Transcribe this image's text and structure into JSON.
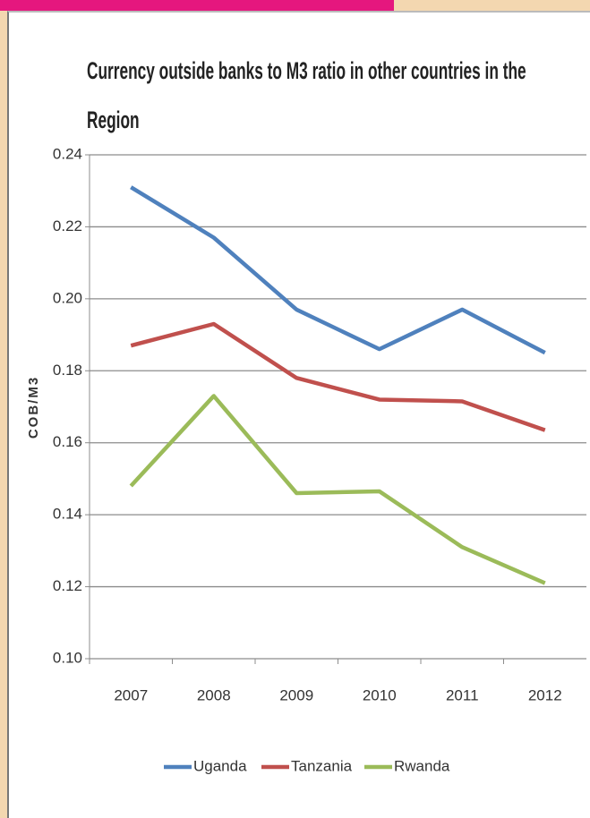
{
  "chart_data": {
    "type": "line",
    "title": "Currency outside banks to M3 ratio  in other countries in the Region",
    "y_label": "COB/M3",
    "categories": [
      "2007",
      "2008",
      "2009",
      "2010",
      "2011",
      "2012"
    ],
    "series": [
      {
        "name": "Uganda",
        "color": "#4f81bd",
        "values": [
          0.231,
          0.217,
          0.197,
          0.186,
          0.197,
          0.185
        ]
      },
      {
        "name": "Tanzania",
        "color": "#c0504d",
        "values": [
          0.187,
          0.193,
          0.178,
          0.172,
          0.1715,
          0.1635
        ]
      },
      {
        "name": "Rwanda",
        "color": "#9bbb59",
        "values": [
          0.148,
          0.173,
          0.146,
          0.1465,
          0.131,
          0.121
        ]
      }
    ],
    "ylim": [
      0.1,
      0.24
    ],
    "yticks": [
      {
        "value": 0.1,
        "label": "0.10"
      },
      0.12,
      0.14,
      0.16,
      0.18,
      {
        "value": 0.2,
        "label": "0.20"
      },
      0.22,
      0.24
    ],
    "grid": true,
    "legend": "bottom"
  }
}
